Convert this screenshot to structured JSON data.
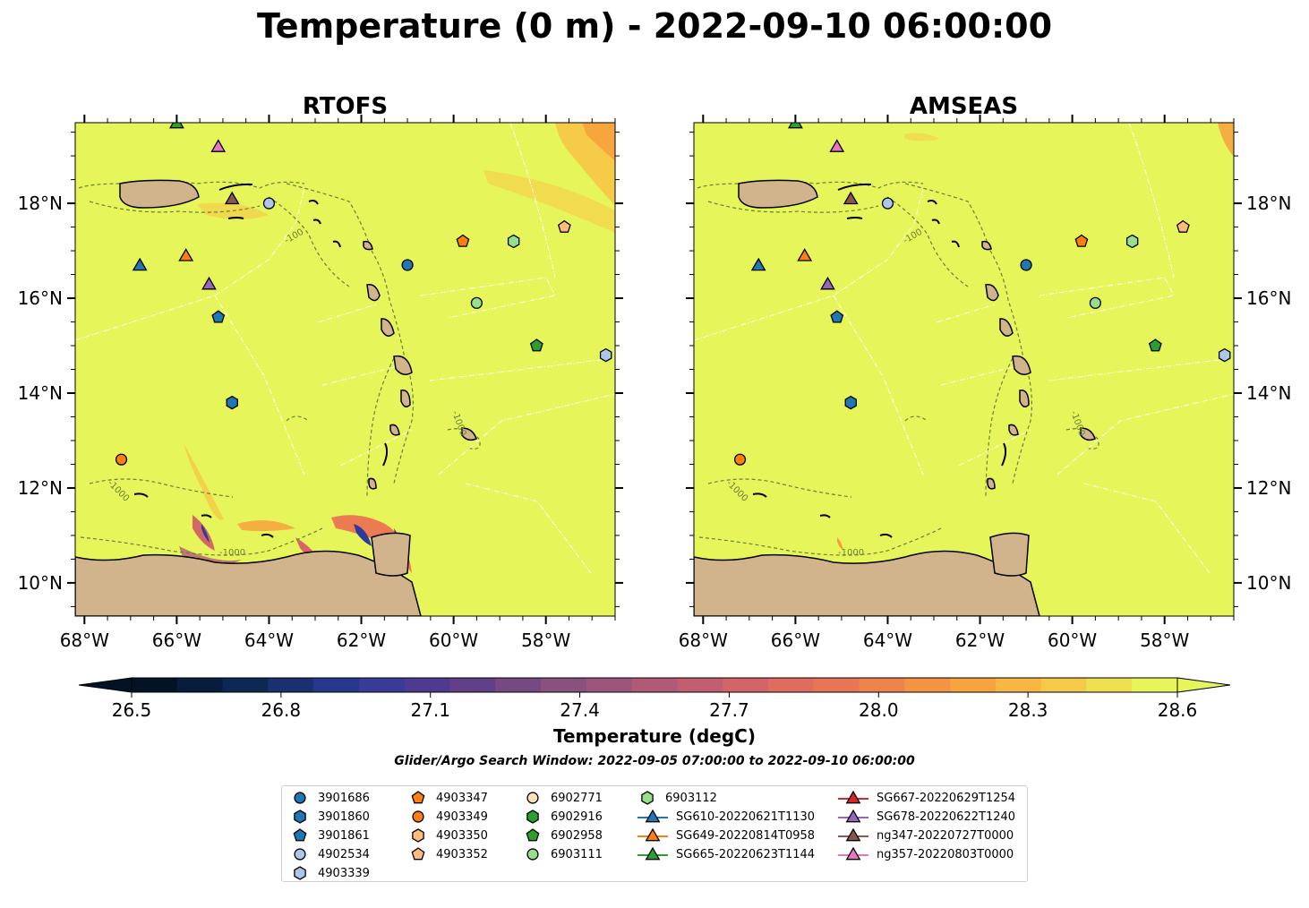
{
  "figure": {
    "title": "Temperature (0 m) - 2022-09-10 06:00:00",
    "search_window": "Glider/Argo Search Window: 2022-09-05 07:00:00 to 2022-09-10 06:00:00"
  },
  "colors": {
    "ocean": "#e6f65a",
    "land": "#d2b48c",
    "coast": "#000000",
    "contour": "#6b7f3a",
    "eez": "#ffffff",
    "rivers": "#a3b8cc"
  },
  "chart_data": [
    {
      "type": "heatmap",
      "title": "RTOFS",
      "xlim": [
        -68.2,
        -56.5
      ],
      "ylim": [
        9.3,
        19.7
      ],
      "x_ticks": [
        "68°W",
        "66°W",
        "64°W",
        "62°W",
        "60°W",
        "58°W"
      ],
      "x_tick_values": [
        -68,
        -66,
        -64,
        -62,
        -60,
        -58
      ],
      "y_ticks": [
        "10°N",
        "12°N",
        "14°N",
        "16°N",
        "18°N"
      ],
      "y_tick_values": [
        10,
        12,
        14,
        16,
        18
      ],
      "y_tick_side": "left",
      "background_value": 28.6,
      "bathymetry_contour_labels": [
        "-100",
        "-1000"
      ],
      "features": "warm/cool anomalies along Venezuelan coast and Gulf of Paria; slightly cooler patches north-east"
    },
    {
      "type": "heatmap",
      "title": "AMSEAS",
      "xlim": [
        -68.2,
        -56.5
      ],
      "ylim": [
        9.3,
        19.7
      ],
      "x_ticks": [
        "68°W",
        "66°W",
        "64°W",
        "62°W",
        "60°W",
        "58°W"
      ],
      "x_tick_values": [
        -68,
        -66,
        -64,
        -62,
        -60,
        -58
      ],
      "y_ticks": [
        "10°N",
        "12°N",
        "14°N",
        "16°N",
        "18°N"
      ],
      "y_tick_values": [
        10,
        12,
        14,
        16,
        18
      ],
      "y_tick_side": "right",
      "background_value": 28.6,
      "bathymetry_contour_labels": [
        "-100",
        "-1000"
      ],
      "features": "nearly uniform surface temperature"
    }
  ],
  "colorbar": {
    "label": "Temperature (degC)",
    "min": 26.45,
    "max": 28.65,
    "ticks": [
      "26.5",
      "26.8",
      "27.1",
      "27.4",
      "27.7",
      "28.0",
      "28.3",
      "28.6"
    ],
    "tick_values": [
      26.5,
      26.8,
      27.1,
      27.4,
      27.7,
      28.0,
      28.3,
      28.6
    ],
    "levels": 23,
    "extend": "both",
    "colormap_stops": [
      "#031326",
      "#0f2a5a",
      "#2e3a9a",
      "#5a3c8c",
      "#85507d",
      "#b05a78",
      "#d66566",
      "#ec7a52",
      "#f79c3c",
      "#f7c646",
      "#e6f65a"
    ]
  },
  "observations": [
    {
      "id": "3901686",
      "marker": "circle",
      "color": "#1f77b4",
      "lon": -61.0,
      "lat": 16.7
    },
    {
      "id": "3901860",
      "marker": "hexagon",
      "color": "#1f77b4",
      "lon": -64.8,
      "lat": 13.8
    },
    {
      "id": "3901861",
      "marker": "pentagon",
      "color": "#1f77b4",
      "lon": -65.1,
      "lat": 15.6
    },
    {
      "id": "4902534",
      "marker": "circle",
      "color": "#aec7e8",
      "lon": -64.0,
      "lat": 18.0
    },
    {
      "id": "4903339",
      "marker": "hexagon",
      "color": "#aec7e8",
      "lon": -56.7,
      "lat": 14.8
    },
    {
      "id": "4903347",
      "marker": "pentagon",
      "color": "#ff7f0e",
      "lon": -59.8,
      "lat": 17.2
    },
    {
      "id": "4903349",
      "marker": "circle",
      "color": "#ff7f0e",
      "lon": -67.2,
      "lat": 12.6
    },
    {
      "id": "4903350",
      "marker": "hexagon",
      "color": "#ffbb78",
      "lon": null,
      "lat": null
    },
    {
      "id": "4903352",
      "marker": "pentagon",
      "color": "#ffbb78",
      "lon": -57.6,
      "lat": 17.5
    },
    {
      "id": "6902771",
      "marker": "circle",
      "color": "#ffdfb8",
      "lon": null,
      "lat": null
    },
    {
      "id": "6902916",
      "marker": "hexagon",
      "color": "#2ca02c",
      "lon": null,
      "lat": null
    },
    {
      "id": "6902958",
      "marker": "pentagon",
      "color": "#2ca02c",
      "lon": -58.2,
      "lat": 15.0
    },
    {
      "id": "6903111",
      "marker": "circle",
      "color": "#98df8a",
      "lon": -59.5,
      "lat": 15.9
    },
    {
      "id": "6903112",
      "marker": "hexagon",
      "color": "#98df8a",
      "lon": -58.7,
      "lat": 17.2
    },
    {
      "id": "SG610-20220621T1130",
      "marker": "triangle",
      "color": "#1f77b4",
      "track": true,
      "lon": -66.8,
      "lat": 16.7
    },
    {
      "id": "SG649-20220814T0958",
      "marker": "triangle",
      "color": "#ff7f0e",
      "track": true,
      "lon": -65.8,
      "lat": 16.9
    },
    {
      "id": "SG665-20220623T1144",
      "marker": "triangle",
      "color": "#2ca02c",
      "track": true,
      "lon": -66.0,
      "lat": 19.7
    },
    {
      "id": "SG667-20220629T1254",
      "marker": "triangle",
      "color": "#d62728",
      "track": true,
      "lon": null,
      "lat": null
    },
    {
      "id": "SG678-20220622T1240",
      "marker": "triangle",
      "color": "#9467bd",
      "track": true,
      "lon": -65.3,
      "lat": 16.3
    },
    {
      "id": "ng347-20220727T0000",
      "marker": "triangle",
      "color": "#8c564b",
      "track": true,
      "lon": -64.8,
      "lat": 18.1
    },
    {
      "id": "ng357-20220803T0000",
      "marker": "triangle",
      "color": "#e377c2",
      "track": true,
      "lon": -65.1,
      "lat": 19.2
    }
  ]
}
